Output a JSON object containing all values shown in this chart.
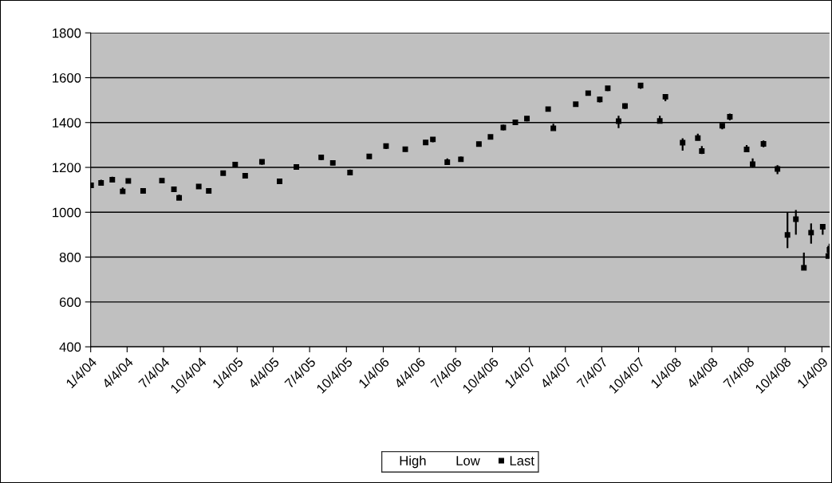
{
  "chart_data": {
    "type": "scatter",
    "x": [
      "2004-01-05",
      "2004-01-30",
      "2004-02-27",
      "2004-03-24",
      "2004-04-07",
      "2004-05-14",
      "2004-06-30",
      "2004-07-30",
      "2004-08-12",
      "2004-09-30",
      "2004-10-25",
      "2004-11-30",
      "2004-12-30",
      "2005-01-24",
      "2005-03-07",
      "2005-04-20",
      "2005-06-01",
      "2005-08-02",
      "2005-08-31",
      "2005-10-13",
      "2005-11-30",
      "2006-01-11",
      "2006-02-28",
      "2006-04-20",
      "2006-05-08",
      "2006-06-13",
      "2006-07-17",
      "2006-08-31",
      "2006-09-29",
      "2006-10-31",
      "2006-11-30",
      "2006-12-29",
      "2007-02-20",
      "2007-03-05",
      "2007-04-30",
      "2007-05-31",
      "2007-06-29",
      "2007-07-19",
      "2007-08-15",
      "2007-08-31",
      "2007-10-09",
      "2007-11-26",
      "2007-12-10",
      "2008-01-22",
      "2008-02-29",
      "2008-03-10",
      "2008-04-30",
      "2008-05-19",
      "2008-06-30",
      "2008-07-15",
      "2008-08-11",
      "2008-09-15",
      "2008-10-10",
      "2008-10-31",
      "2008-11-20",
      "2008-12-08",
      "2009-01-06",
      "2009-01-20",
      "2009-01-23"
    ],
    "series": [
      {
        "name": "Last",
        "color": "#000000",
        "marker": "square",
        "values": [
          1120,
          1131,
          1145,
          1093,
          1140,
          1095,
          1141,
          1102,
          1064,
          1115,
          1095,
          1174,
          1213,
          1163,
          1225,
          1138,
          1202,
          1245,
          1220,
          1177,
          1249,
          1295,
          1281,
          1311,
          1325,
          1223,
          1236,
          1304,
          1336,
          1378,
          1401,
          1418,
          1460,
          1374,
          1482,
          1531,
          1503,
          1553,
          1406,
          1474,
          1565,
          1407,
          1515,
          1310,
          1331,
          1273,
          1386,
          1426,
          1280,
          1214,
          1305,
          1193,
          899,
          969,
          752,
          909,
          935,
          805,
          832
        ],
        "errors": [
          [
            1110,
            1130
          ],
          [
            1120,
            1145
          ],
          [
            1135,
            1158
          ],
          [
            1085,
            1110
          ],
          [
            1130,
            1150
          ],
          [
            1085,
            1108
          ],
          [
            1130,
            1150
          ],
          [
            1090,
            1112
          ],
          [
            1060,
            1078
          ],
          [
            1105,
            1125
          ],
          [
            1085,
            1105
          ],
          [
            1165,
            1185
          ],
          [
            1200,
            1220
          ],
          [
            1155,
            1175
          ],
          [
            1212,
            1235
          ],
          [
            1130,
            1150
          ],
          [
            1190,
            1212
          ],
          [
            1232,
            1255
          ],
          [
            1210,
            1230
          ],
          [
            1170,
            1190
          ],
          [
            1238,
            1260
          ],
          [
            1282,
            1305
          ],
          [
            1270,
            1292
          ],
          [
            1300,
            1322
          ],
          [
            1312,
            1335
          ],
          [
            1215,
            1240
          ],
          [
            1225,
            1248
          ],
          [
            1295,
            1315
          ],
          [
            1325,
            1345
          ],
          [
            1365,
            1390
          ],
          [
            1390,
            1410
          ],
          [
            1405,
            1428
          ],
          [
            1450,
            1470
          ],
          [
            1370,
            1395
          ],
          [
            1470,
            1490
          ],
          [
            1520,
            1540
          ],
          [
            1490,
            1515
          ],
          [
            1540,
            1560
          ],
          [
            1375,
            1430
          ],
          [
            1460,
            1485
          ],
          [
            1550,
            1575
          ],
          [
            1400,
            1430
          ],
          [
            1495,
            1525
          ],
          [
            1275,
            1330
          ],
          [
            1320,
            1350
          ],
          [
            1260,
            1295
          ],
          [
            1370,
            1395
          ],
          [
            1410,
            1440
          ],
          [
            1270,
            1300
          ],
          [
            1200,
            1240
          ],
          [
            1290,
            1320
          ],
          [
            1170,
            1210
          ],
          [
            840,
            1000
          ],
          [
            900,
            1010
          ],
          [
            745,
            820
          ],
          [
            860,
            950
          ],
          [
            900,
            945
          ],
          [
            800,
            850
          ],
          [
            815,
            860
          ]
        ]
      }
    ],
    "annotations": [
      "High",
      "Low"
    ],
    "xlim": [
      "2004-01-04",
      "2009-01-23"
    ],
    "xticks": [
      {
        "value": "2004-01-04",
        "label": "1/4/04"
      },
      {
        "value": "2004-04-04",
        "label": "4/4/04"
      },
      {
        "value": "2004-07-04",
        "label": "7/4/04"
      },
      {
        "value": "2004-10-04",
        "label": "10/4/04"
      },
      {
        "value": "2005-01-04",
        "label": "1/4/05"
      },
      {
        "value": "2005-04-04",
        "label": "4/4/05"
      },
      {
        "value": "2005-07-04",
        "label": "7/4/05"
      },
      {
        "value": "2005-10-04",
        "label": "10/4/05"
      },
      {
        "value": "2006-01-04",
        "label": "1/4/06"
      },
      {
        "value": "2006-04-04",
        "label": "4/4/06"
      },
      {
        "value": "2006-07-04",
        "label": "7/4/06"
      },
      {
        "value": "2006-10-04",
        "label": "10/4/06"
      },
      {
        "value": "2007-01-04",
        "label": "1/4/07"
      },
      {
        "value": "2007-04-04",
        "label": "4/4/07"
      },
      {
        "value": "2007-07-04",
        "label": "7/4/07"
      },
      {
        "value": "2007-10-04",
        "label": "10/4/07"
      },
      {
        "value": "2008-01-04",
        "label": "1/4/08"
      },
      {
        "value": "2008-04-04",
        "label": "4/4/08"
      },
      {
        "value": "2008-07-04",
        "label": "7/4/08"
      },
      {
        "value": "2008-10-04",
        "label": "10/4/08"
      },
      {
        "value": "2009-01-04",
        "label": "1/4/09"
      }
    ],
    "ylim": [
      400,
      1800
    ],
    "yticks": [
      400,
      600,
      800,
      1000,
      1200,
      1400,
      1600,
      1800
    ],
    "grid": "y",
    "legend": "bottom"
  }
}
